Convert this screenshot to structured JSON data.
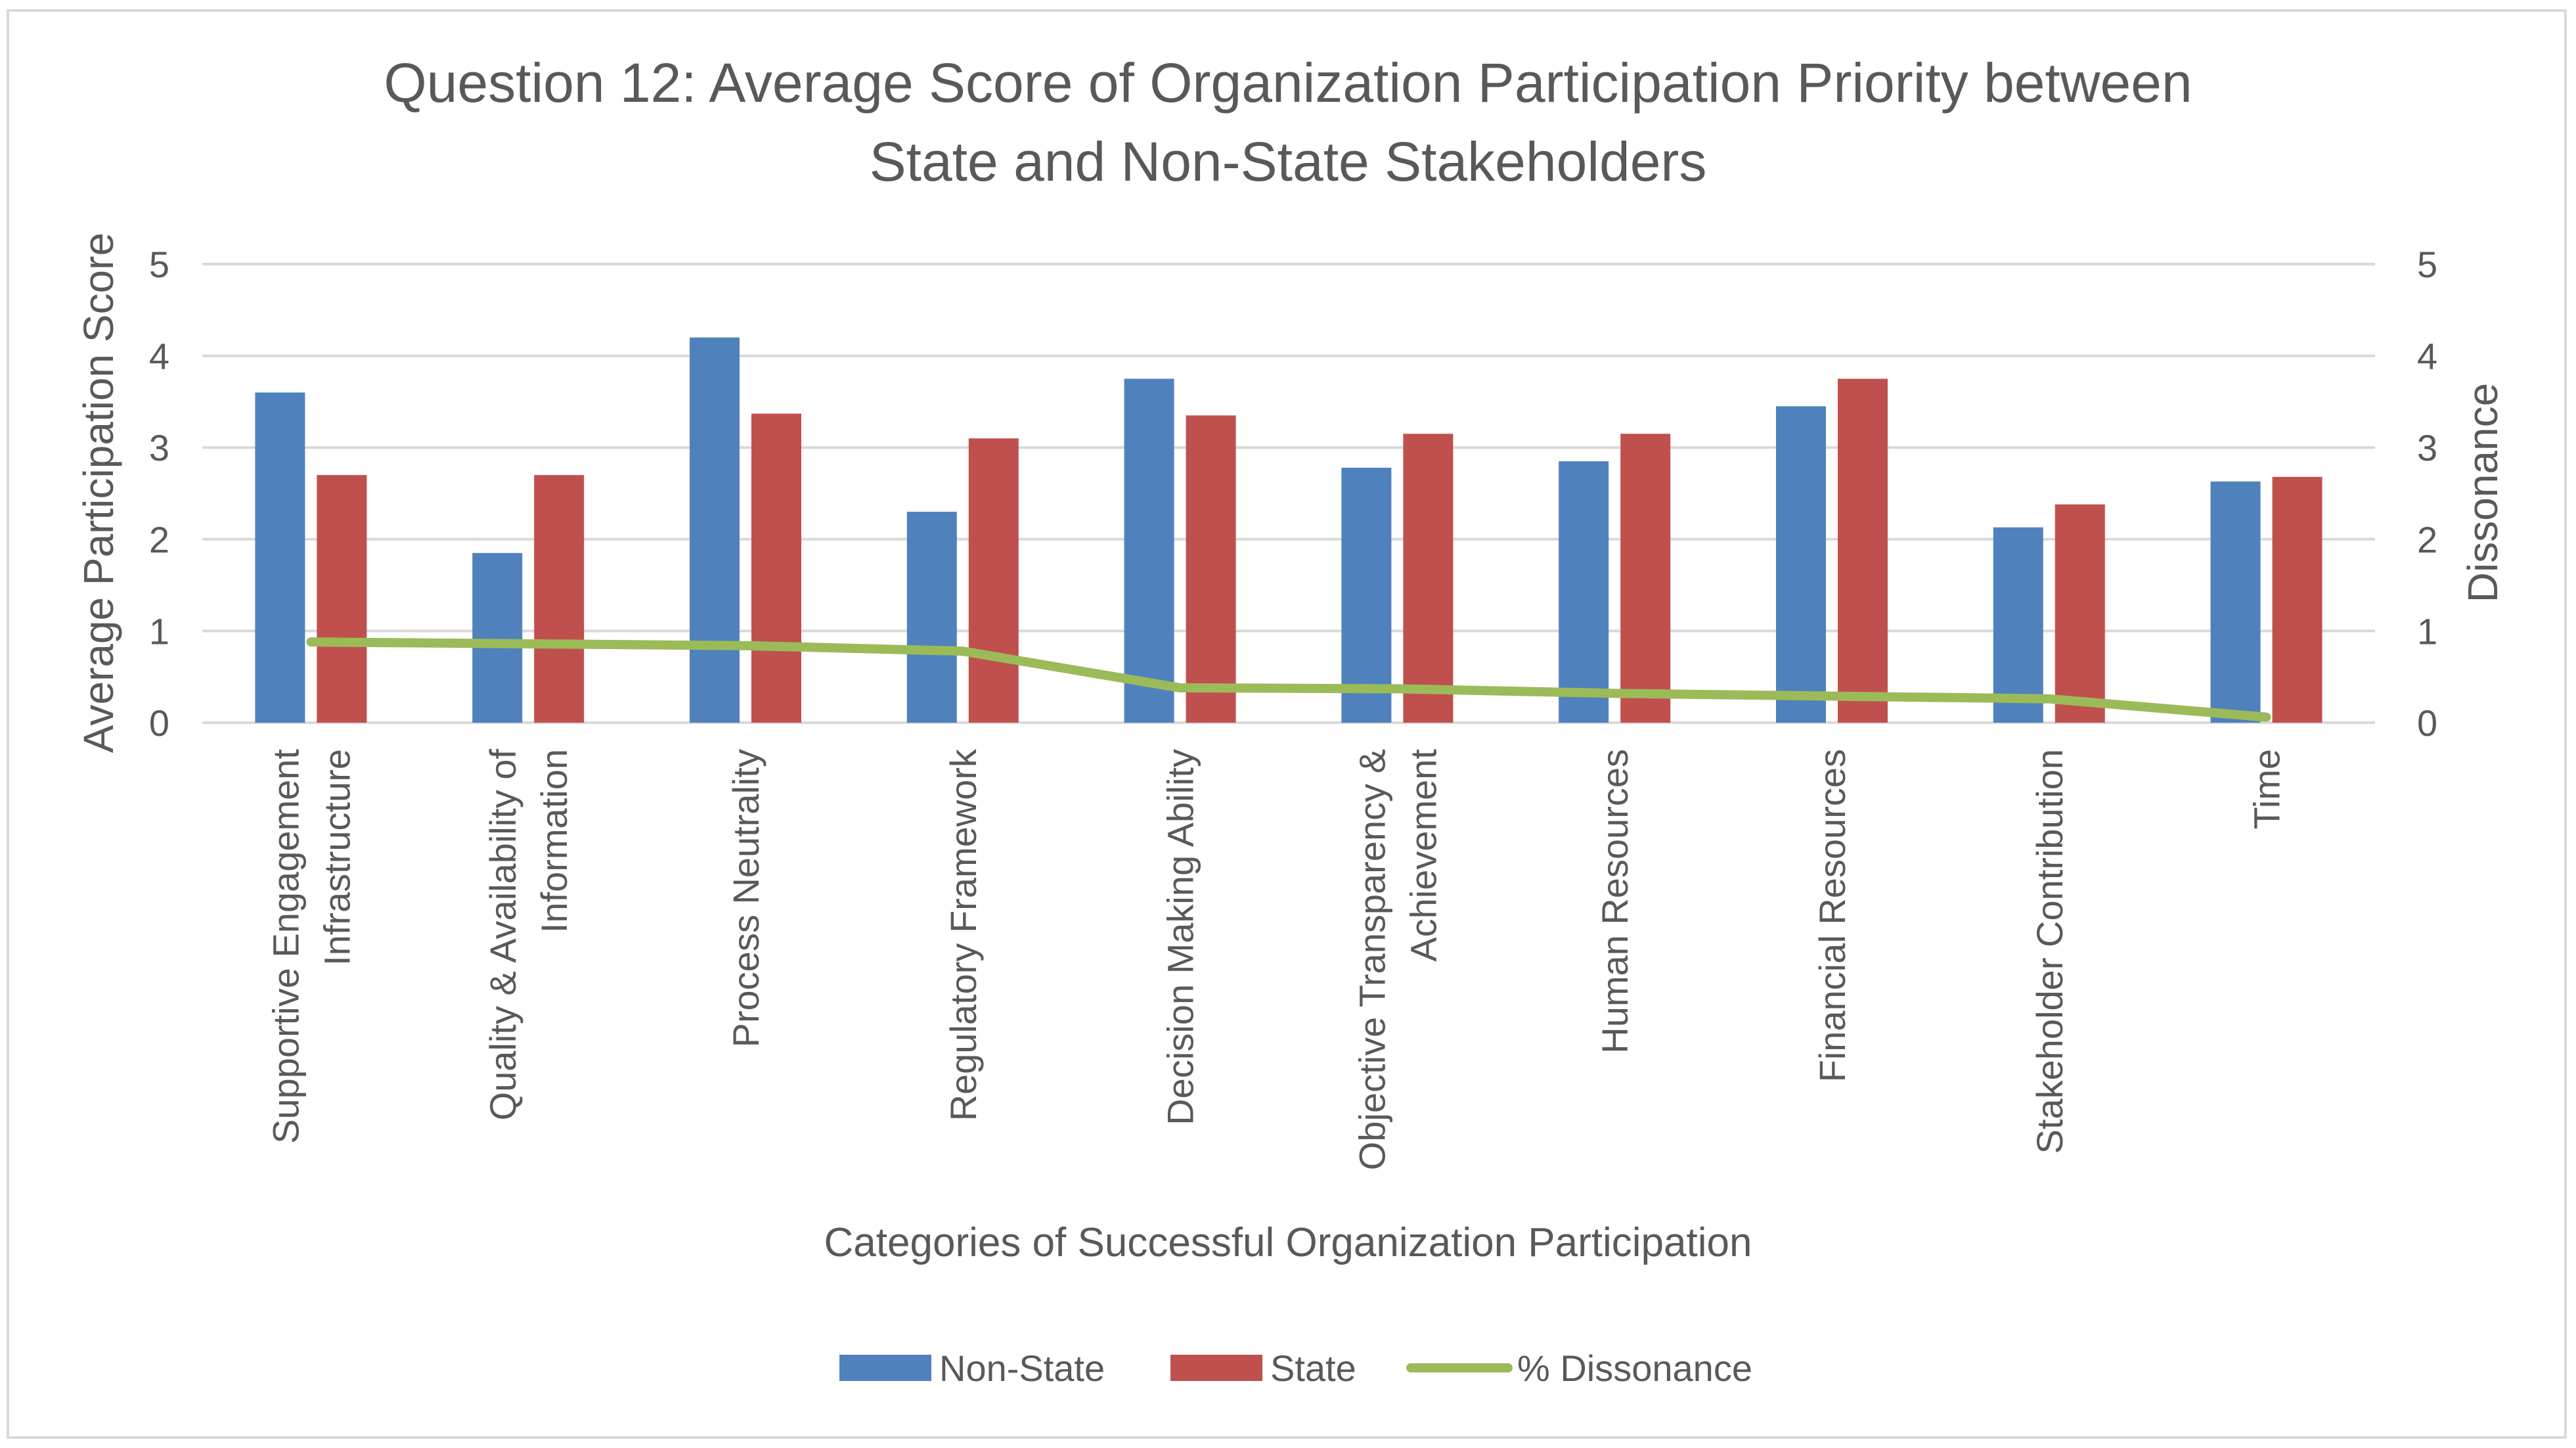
{
  "chart_data": {
    "type": "bar",
    "title_lines": [
      "Question 12: Average Score of Organization Participation Priority between",
      "State and Non-State Stakeholders"
    ],
    "xlabel": "Categories of Successful Organization Participation",
    "ylabel": "Average Participation Score",
    "y2label": "Dissonance",
    "ylim": [
      0,
      5
    ],
    "y2lim": [
      0,
      5
    ],
    "yticks": [
      "0",
      "1",
      "2",
      "3",
      "4",
      "5"
    ],
    "y2ticks": [
      "0",
      "1",
      "2",
      "3",
      "4",
      "5"
    ],
    "grid": true,
    "legend_position": "bottom",
    "categories": [
      [
        "Supportive Engagement",
        "Infrastructure"
      ],
      [
        "Quality & Availability of",
        "Information"
      ],
      [
        "Process Neutrality"
      ],
      [
        "Regulatory Framework"
      ],
      [
        "Decision Making Ability"
      ],
      [
        "Objective Transparency &",
        "Achievement"
      ],
      [
        "Human Resources"
      ],
      [
        "Financial Resources"
      ],
      [
        "Stakeholder Contribution"
      ],
      [
        "Time"
      ]
    ],
    "series": [
      {
        "name": "Non-State",
        "type": "bar",
        "axis": "left",
        "color": "#4f81bd",
        "values": [
          3.6,
          1.85,
          4.2,
          2.3,
          3.75,
          2.78,
          2.85,
          3.45,
          2.13,
          2.63
        ]
      },
      {
        "name": "State",
        "type": "bar",
        "axis": "left",
        "color": "#c0504d",
        "values": [
          2.7,
          2.7,
          3.37,
          3.1,
          3.35,
          3.15,
          3.15,
          3.75,
          2.38,
          2.68
        ]
      },
      {
        "name": "% Dissonance",
        "type": "line",
        "axis": "right",
        "color": "#9bbb59",
        "values": [
          0.88,
          0.86,
          0.84,
          0.78,
          0.38,
          0.37,
          0.32,
          0.29,
          0.26,
          0.06
        ]
      }
    ]
  }
}
